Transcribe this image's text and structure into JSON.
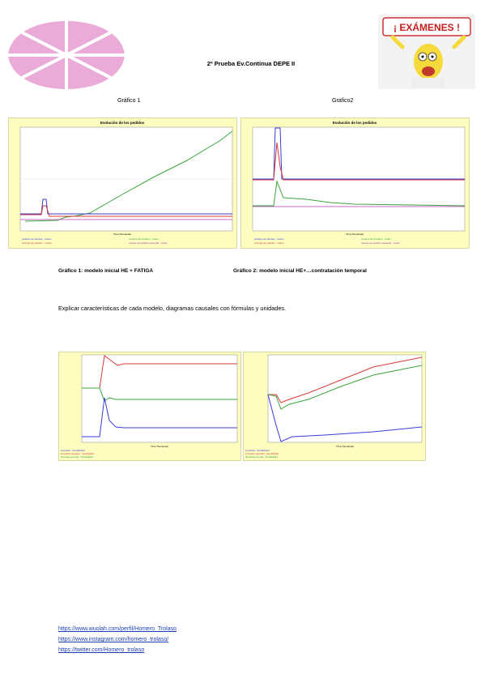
{
  "header": {
    "title": "2º Prueba Ev.Continua DEPE II",
    "badge_text": "¡ EXÁMENES !"
  },
  "captions_top": {
    "left": "Gráfico 1",
    "right": "Grafico2"
  },
  "chart1": {
    "title": "Evolución de los pedidos",
    "xlabel": "Time (Semanas)",
    "legend": [
      "pedidos de clientes : cuatro",
      "entrega de pedidos : cuatro",
      "Cartera De Pedidos : cuatro",
      "cartera de pedidos deseada : cuatro"
    ],
    "colors": {
      "blue": "#3a3ad8",
      "red": "#d83a3a",
      "green": "#3aa63a",
      "purple": "#b03ab0"
    }
  },
  "chart2": {
    "title": "Evolución de los pedidos",
    "xlabel": "Time (Semanas)",
    "legend": [
      "pedidos de clientes : cuatro",
      "entrega de pedidos : cuatro",
      "Cartera De Pedidos : cuatro",
      "cartera de pedidos deseada : cuatro"
    ]
  },
  "figure_captions": {
    "left": "Gráfico 1: modelo inicial HE + FATIGA",
    "right": "Gráfico 2: modelo inicial HE+…contratación temporal"
  },
  "body": {
    "text": "Explicar características de cada modelo, diagramas causales con fórmulas y unidades."
  },
  "chart3": {
    "xlabel": "Time (Semanas)",
    "legend": [
      "inventario : Sensibilidad",
      "inventario deseado : Sensibilidad",
      "demanda prevista : Sensibilidad"
    ]
  },
  "chart4": {
    "xlabel": "Time (Semanas)",
    "legend": [
      "inventario : Sensibilidad",
      "inventario deseado : Sensibilidad",
      "demanda prevista : Sensibilidad"
    ]
  },
  "links": [
    "https://www.wuolah.com/perfil/Homero_Trolaso",
    "https://www.instagram.com/homero_trolaso/",
    "https://twitter.com/Homero_trolaso"
  ]
}
